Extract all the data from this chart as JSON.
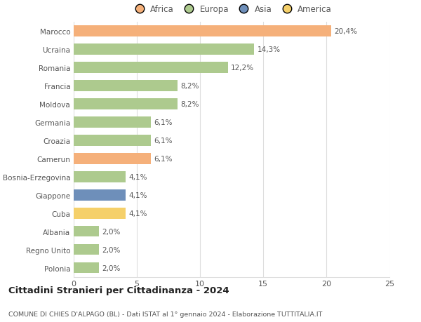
{
  "countries": [
    "Marocco",
    "Ucraina",
    "Romania",
    "Francia",
    "Moldova",
    "Germania",
    "Croazia",
    "Camerun",
    "Bosnia-Erzegovina",
    "Giappone",
    "Cuba",
    "Albania",
    "Regno Unito",
    "Polonia"
  ],
  "values": [
    20.4,
    14.3,
    12.2,
    8.2,
    8.2,
    6.1,
    6.1,
    6.1,
    4.1,
    4.1,
    4.1,
    2.0,
    2.0,
    2.0
  ],
  "labels": [
    "20,4%",
    "14,3%",
    "12,2%",
    "8,2%",
    "8,2%",
    "6,1%",
    "6,1%",
    "6,1%",
    "4,1%",
    "4,1%",
    "4,1%",
    "2,0%",
    "2,0%",
    "2,0%"
  ],
  "colors": [
    "#F5B07A",
    "#ADCA8E",
    "#ADCA8E",
    "#ADCA8E",
    "#ADCA8E",
    "#ADCA8E",
    "#ADCA8E",
    "#F5B07A",
    "#ADCA8E",
    "#6E8FBA",
    "#F5D06A",
    "#ADCA8E",
    "#ADCA8E",
    "#ADCA8E"
  ],
  "legend_labels": [
    "Africa",
    "Europa",
    "Asia",
    "America"
  ],
  "legend_colors": [
    "#F5B07A",
    "#ADCA8E",
    "#6E8FBA",
    "#F5D06A"
  ],
  "xlim": [
    0,
    25
  ],
  "xticks": [
    0,
    5,
    10,
    15,
    20,
    25
  ],
  "title": "Cittadini Stranieri per Cittadinanza - 2024",
  "subtitle": "COMUNE DI CHIES D'ALPAGO (BL) - Dati ISTAT al 1° gennaio 2024 - Elaborazione TUTTITALIA.IT",
  "background_color": "#ffffff",
  "bar_height": 0.6,
  "grid_color": "#dddddd",
  "label_fontsize": 7.5,
  "ytick_fontsize": 7.5,
  "xtick_fontsize": 8,
  "title_fontsize": 9.5,
  "subtitle_fontsize": 6.8,
  "text_color": "#555555"
}
